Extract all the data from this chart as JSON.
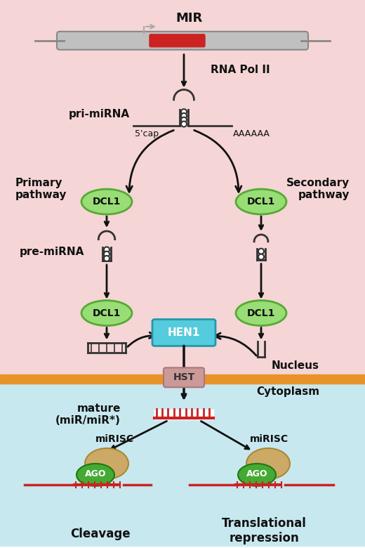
{
  "bg_nucleus": "#f5d5d5",
  "bg_cytoplasm": "#c8e8f0",
  "membrane_color": "#e8922a",
  "gene_body_color": "#c0c0c0",
  "gene_red_color": "#cc2222",
  "dcl1_color": "#99dd77",
  "dcl1_text": "DCL1",
  "hen1_color": "#55ccdd",
  "hen1_text": "HEN1",
  "hst_color": "#cc9999",
  "hst_text": "HST",
  "ago_color": "#44aa33",
  "ago_text": "AGO",
  "mirisc_color": "#ccaa66",
  "arrow_color": "#111111",
  "text_color": "#111111",
  "mir_text": "MIR",
  "rna_pol_text": "RNA Pol II",
  "pri_mirna_text": "pri-miRNA",
  "pre_mirna_text": "pre-miRNA",
  "primary_text": "Primary\npathway",
  "secondary_text": "Secondary\npathway",
  "nucleus_text": "Nucleus",
  "cytoplasm_text": "Cytoplasm",
  "mature_text": "mature\n(miR/miR*)",
  "cleavage_text": "Cleavage",
  "trans_rep_text": "Translational\nrepression",
  "mirisc_text": "miRISC",
  "five_cap_text": "5'cap",
  "aaaa_text": "AAAAAA"
}
